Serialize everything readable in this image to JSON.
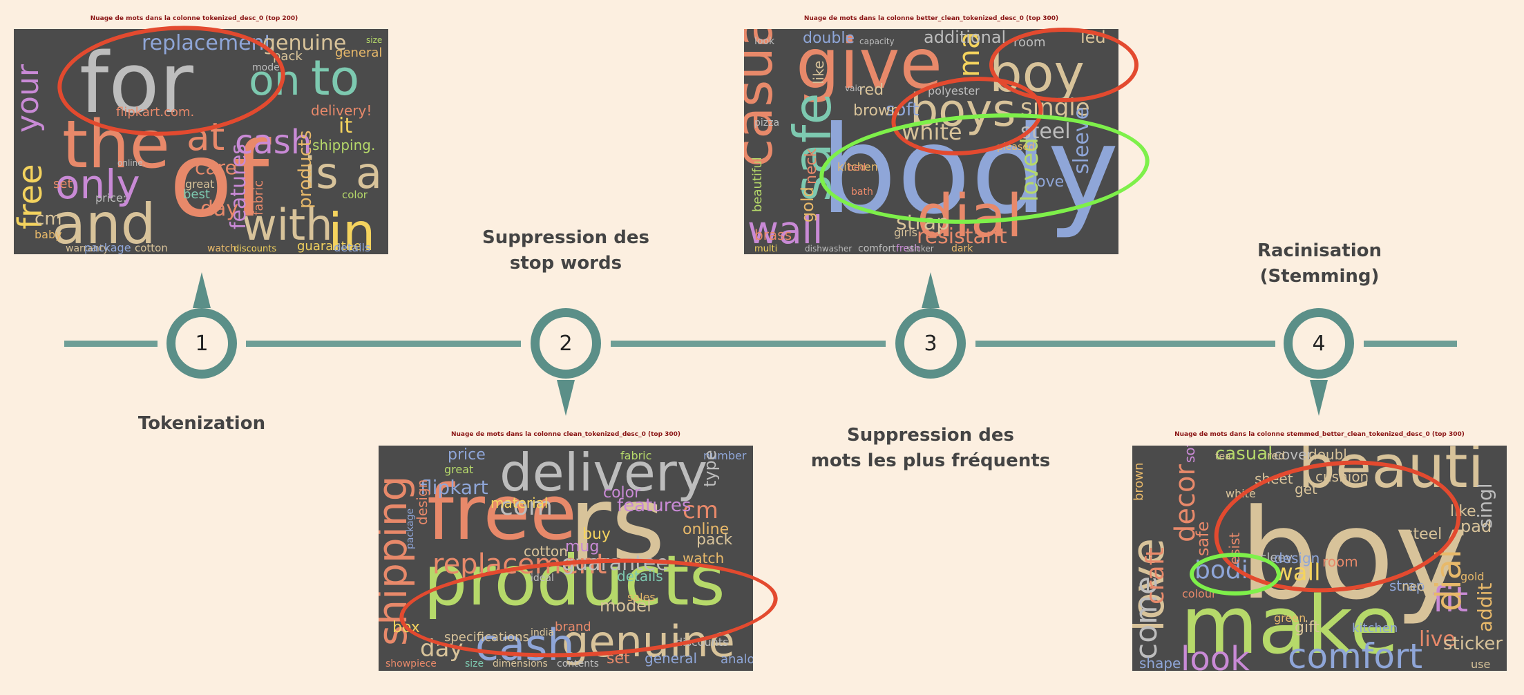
{
  "steps": [
    {
      "number": "1",
      "label_lines": [
        "Tokenization"
      ]
    },
    {
      "number": "2",
      "label_lines": [
        "Suppression des",
        "stop words"
      ]
    },
    {
      "number": "3",
      "label_lines": [
        "Suppression des",
        "mots les plus fréquents"
      ]
    },
    {
      "number": "4",
      "label_lines": [
        "Racinisation (Stemming)"
      ]
    }
  ],
  "wordclouds": [
    {
      "title": "Nuage de mots dans la colonne tokenized_desc_0 (top 200)",
      "words": [
        {
          "t": "for",
          "c": "#bdbdbd"
        },
        {
          "t": "of",
          "c": "#e8896a"
        },
        {
          "t": "and",
          "c": "#d8c39a"
        },
        {
          "t": "the",
          "c": "#e8896a"
        },
        {
          "t": "with",
          "c": "#d8c39a"
        },
        {
          "t": "in",
          "c": "#f4d35e"
        },
        {
          "t": "to",
          "c": "#7dc9b0"
        },
        {
          "t": "only",
          "c": "#c98ad6"
        },
        {
          "t": "free",
          "c": "#f4d35e"
        },
        {
          "t": "is",
          "c": "#d8c39a"
        },
        {
          "t": "a",
          "c": "#d8c39a"
        },
        {
          "t": "your",
          "c": "#c98ad6"
        },
        {
          "t": "on",
          "c": "#7dc9b0"
        },
        {
          "t": "at",
          "c": "#e8896a"
        },
        {
          "t": "replacement",
          "c": "#8fa6d8"
        },
        {
          "t": "genuine",
          "c": "#d8c39a"
        },
        {
          "t": "cash",
          "c": "#c98ad6"
        },
        {
          "t": "products",
          "c": "#e8b96a"
        },
        {
          "t": "features",
          "c": "#c98ad6"
        },
        {
          "t": "delivery!",
          "c": "#e8896a"
        },
        {
          "t": "shipping.",
          "c": "#b6d96a"
        },
        {
          "t": "it",
          "c": "#f4d35e"
        },
        {
          "t": "flipkart.com.",
          "c": "#e8896a"
        },
        {
          "t": "guarantee.",
          "c": "#f4d35e"
        },
        {
          "t": "fabric",
          "c": "#e8896a"
        },
        {
          "t": "day",
          "c": "#e8896a"
        },
        {
          "t": "warranty",
          "c": "#d8c39a"
        },
        {
          "t": "package",
          "c": "#8fa6d8"
        },
        {
          "t": "cotton",
          "c": "#d8c39a"
        },
        {
          "t": "baby",
          "c": "#e8b96a"
        },
        {
          "t": "cm",
          "c": "#d8c39a"
        },
        {
          "t": "price:",
          "c": "#bdbdbd"
        },
        {
          "t": "care",
          "c": "#e8896a"
        },
        {
          "t": "great",
          "c": "#d8c39a"
        },
        {
          "t": "best",
          "c": "#7dc9b0"
        },
        {
          "t": "watch",
          "c": "#e8b96a"
        },
        {
          "t": "discounts",
          "c": "#f4d35e"
        },
        {
          "t": "details",
          "c": "#8fa6d8"
        },
        {
          "t": "color",
          "c": "#b6d96a"
        },
        {
          "t": "online.",
          "c": "#bdbdbd"
        },
        {
          "t": "general",
          "c": "#e8b96a"
        },
        {
          "t": "model",
          "c": "#bdbdbd"
        },
        {
          "t": "size",
          "c": "#b6d96a"
        },
        {
          "t": "pack",
          "c": "#d8c39a"
        },
        {
          "t": "set",
          "c": "#e8896a"
        }
      ]
    },
    {
      "title": "Nuage de mots dans la colonne clean_tokenized_desc_0 (top 300)",
      "words": [
        {
          "t": "products",
          "c": "#b6d96a"
        },
        {
          "t": "rs",
          "c": "#d8c39a"
        },
        {
          "t": "free",
          "c": "#e8896a"
        },
        {
          "t": "delivery",
          "c": "#bdbdbd"
        },
        {
          "t": "genuine",
          "c": "#d8c39a"
        },
        {
          "t": "cash",
          "c": "#8fa6d8"
        },
        {
          "t": "shipping",
          "c": "#e8896a"
        },
        {
          "t": "replacement",
          "c": "#e8896a"
        },
        {
          "t": "com",
          "c": "#bdbdbd"
        },
        {
          "t": "cm",
          "c": "#e8896a"
        },
        {
          "t": "flipkart",
          "c": "#8fa6d8"
        },
        {
          "t": "guarantee",
          "c": "#bdbdbd"
        },
        {
          "t": "features",
          "c": "#c98ad6"
        },
        {
          "t": "material",
          "c": "#f4d35e"
        },
        {
          "t": "online",
          "c": "#e8b96a"
        },
        {
          "t": "watch",
          "c": "#e8b96a"
        },
        {
          "t": "pack",
          "c": "#d8c39a"
        },
        {
          "t": "price",
          "c": "#8fa6d8"
        },
        {
          "t": "day",
          "c": "#d8c39a"
        },
        {
          "t": "box",
          "c": "#f4d35e"
        },
        {
          "t": "specifications",
          "c": "#d8c39a"
        },
        {
          "t": "set",
          "c": "#e8896a"
        },
        {
          "t": "general",
          "c": "#8fa6d8"
        },
        {
          "t": "analog",
          "c": "#8fa6d8"
        },
        {
          "t": "buy",
          "c": "#f4d35e"
        },
        {
          "t": "color",
          "c": "#c98ad6"
        },
        {
          "t": "fabric",
          "c": "#b6d96a"
        },
        {
          "t": "details",
          "c": "#7dc9b0"
        },
        {
          "t": "brand",
          "c": "#e8896a"
        },
        {
          "t": "ideal",
          "c": "#bdbdbd"
        },
        {
          "t": "cotton",
          "c": "#d8c39a"
        },
        {
          "t": "mug",
          "c": "#c98ad6"
        },
        {
          "t": "number",
          "c": "#8fa6d8"
        },
        {
          "t": "type",
          "c": "#bdbdbd"
        },
        {
          "t": "design",
          "c": "#e8896a"
        },
        {
          "t": "package",
          "c": "#8fa6d8"
        },
        {
          "t": "great",
          "c": "#b6d96a"
        },
        {
          "t": "model",
          "c": "#d8c39a"
        },
        {
          "t": "sales",
          "c": "#e8b96a"
        },
        {
          "t": "india",
          "c": "#d8c39a"
        },
        {
          "t": "showpiece",
          "c": "#e8896a"
        },
        {
          "t": "dimensions",
          "c": "#d8c39a"
        },
        {
          "t": "contents",
          "c": "#bdbdbd"
        },
        {
          "t": "size",
          "c": "#7dc9b0"
        },
        {
          "t": "discounts",
          "c": "#bdbdbd"
        }
      ]
    },
    {
      "title": "Nuage de mots dans la colonne better_clean_tokenized_desc_0 (top 300)",
      "words": [
        {
          "t": "body",
          "c": "#8fa6d8"
        },
        {
          "t": "give",
          "c": "#e8896a"
        },
        {
          "t": "boy",
          "c": "#d8c39a"
        },
        {
          "t": "boys",
          "c": "#d8c39a"
        },
        {
          "t": "casual",
          "c": "#e8896a"
        },
        {
          "t": "dial",
          "c": "#e8896a"
        },
        {
          "t": "wall",
          "c": "#c98ad6"
        },
        {
          "t": "safe",
          "c": "#7dc9b0"
        },
        {
          "t": "make",
          "c": "#f4d35e"
        },
        {
          "t": "resistant",
          "c": "#e8896a"
        },
        {
          "t": "strap",
          "c": "#d8c39a"
        },
        {
          "t": "single",
          "c": "#d8c39a"
        },
        {
          "t": "steel",
          "c": "#bdbdbd"
        },
        {
          "t": "white",
          "c": "#d8c39a"
        },
        {
          "t": "soft",
          "c": "#8fa6d8"
        },
        {
          "t": "sleeve",
          "c": "#8fa6d8"
        },
        {
          "t": "double",
          "c": "#8fa6d8"
        },
        {
          "t": "additional",
          "c": "#bdbdbd"
        },
        {
          "t": "led",
          "c": "#d8c39a"
        },
        {
          "t": "room",
          "c": "#bdbdbd"
        },
        {
          "t": "brown",
          "c": "#d8c39a"
        },
        {
          "t": "red",
          "c": "#d8c39a"
        },
        {
          "t": "loved",
          "c": "#b6d96a"
        },
        {
          "t": "love",
          "c": "#8fa6d8"
        },
        {
          "t": "gold",
          "c": "#e8b96a"
        },
        {
          "t": "neck",
          "c": "#e8896a"
        },
        {
          "t": "brass",
          "c": "#e8896a"
        },
        {
          "t": "kitchen",
          "c": "#e8b96a"
        },
        {
          "t": "beautiful",
          "c": "#b6d96a"
        },
        {
          "t": "comfort",
          "c": "#bdbdbd"
        },
        {
          "t": "fresh",
          "c": "#c98ad6"
        },
        {
          "t": "dark",
          "c": "#e8b96a"
        },
        {
          "t": "girls",
          "c": "#d8c39a"
        },
        {
          "t": "like",
          "c": "#d8c39a"
        },
        {
          "t": "bath",
          "c": "#e8896a"
        },
        {
          "t": "bed",
          "c": "#e8896a"
        },
        {
          "t": "pleased",
          "c": "#e8b96a"
        },
        {
          "t": "polyester",
          "c": "#bdbdbd"
        },
        {
          "t": "multi",
          "c": "#f4d35e"
        },
        {
          "t": "dishwasher",
          "c": "#bdbdbd"
        },
        {
          "t": "sticker",
          "c": "#bdbdbd"
        },
        {
          "t": "pizza",
          "c": "#bdbdbd"
        },
        {
          "t": "vaio",
          "c": "#bdbdbd"
        },
        {
          "t": "look",
          "c": "#bdbdbd"
        },
        {
          "t": "capacity",
          "c": "#bdbdbd"
        }
      ]
    },
    {
      "title": "Nuage de mots dans la colonne stemmed_better_clean_tokenized_desc_0 (top 300)",
      "words": [
        {
          "t": "boy",
          "c": "#d8c39a"
        },
        {
          "t": "make",
          "c": "#b6d96a"
        },
        {
          "t": "beauti",
          "c": "#d8c39a"
        },
        {
          "t": "look",
          "c": "#c98ad6"
        },
        {
          "t": "comfort",
          "c": "#8fa6d8"
        },
        {
          "t": "love",
          "c": "#d8c39a"
        },
        {
          "t": "come",
          "c": "#bdbdbd"
        },
        {
          "t": "fit",
          "c": "#c98ad6"
        },
        {
          "t": "wall",
          "c": "#f4d35e"
        },
        {
          "t": "bodi",
          "c": "#8fa6d8"
        },
        {
          "t": "decor",
          "c": "#e8896a"
        },
        {
          "t": "craft",
          "c": "#e8896a"
        },
        {
          "t": "casual",
          "c": "#b6d96a"
        },
        {
          "t": "cover",
          "c": "#bdbdbd"
        },
        {
          "t": "dial",
          "c": "#e8b96a"
        },
        {
          "t": "live",
          "c": "#e8896a"
        },
        {
          "t": "shape",
          "c": "#8fa6d8"
        },
        {
          "t": "safe",
          "c": "#e8896a"
        },
        {
          "t": "resist",
          "c": "#e8896a"
        },
        {
          "t": "sleev",
          "c": "#bdbdbd"
        },
        {
          "t": "design",
          "c": "#8fa6d8"
        },
        {
          "t": "room",
          "c": "#e8896a"
        },
        {
          "t": "steel",
          "c": "#d8c39a"
        },
        {
          "t": "white",
          "c": "#d8c39a"
        },
        {
          "t": "sheet",
          "c": "#d8c39a"
        },
        {
          "t": "strap",
          "c": "#8fa6d8"
        },
        {
          "t": "soft",
          "c": "#c98ad6"
        },
        {
          "t": "brown",
          "c": "#e8b96a"
        },
        {
          "t": "colour",
          "c": "#e8896a"
        },
        {
          "t": "neck",
          "c": "#d8c39a"
        },
        {
          "t": "green",
          "c": "#e8b96a"
        },
        {
          "t": "gift",
          "c": "#d8c39a"
        },
        {
          "t": "tea",
          "c": "#d8c39a"
        },
        {
          "t": "red",
          "c": "#d8c39a"
        },
        {
          "t": "doubl",
          "c": "#d8c39a"
        },
        {
          "t": "sticker",
          "c": "#d8c39a"
        },
        {
          "t": "use",
          "c": "#d8c39a"
        },
        {
          "t": "cushion",
          "c": "#d8c39a"
        },
        {
          "t": "like",
          "c": "#d8c39a"
        },
        {
          "t": "pad",
          "c": "#d8c39a"
        },
        {
          "t": "singl",
          "c": "#bdbdbd"
        },
        {
          "t": "addit",
          "c": "#e8b96a"
        },
        {
          "t": "gold",
          "c": "#e8b96a"
        },
        {
          "t": "kitchen",
          "c": "#8fa6d8"
        },
        {
          "t": "get",
          "c": "#d8c39a"
        }
      ]
    }
  ]
}
